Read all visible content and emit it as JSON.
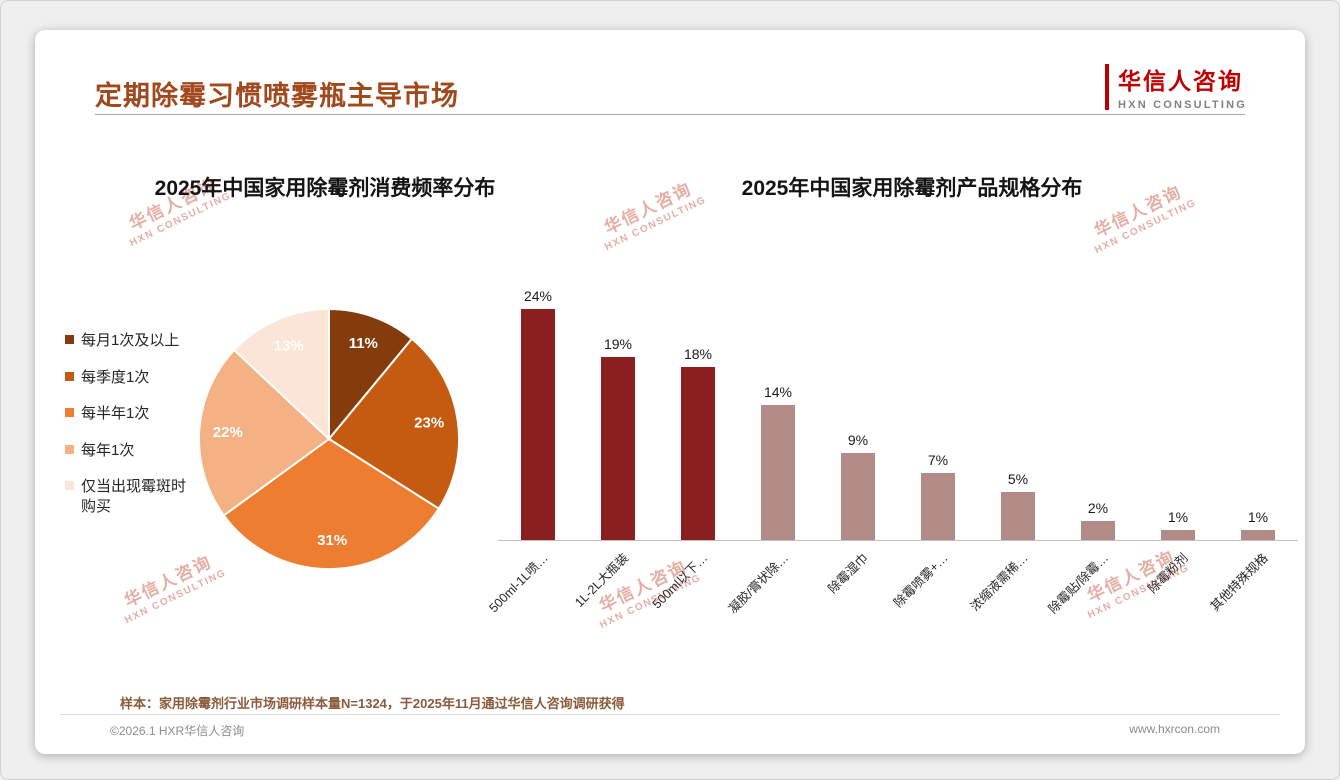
{
  "page": {
    "title": "定期除霉习惯喷雾瓶主导市场",
    "logo": {
      "cn": "华信人咨询",
      "en": "HXN CONSULTING"
    },
    "watermark": {
      "cn": "华信人咨询",
      "en": "HXN CONSULTING"
    },
    "footnote": "样本：家用除霉剂行业市场调研样本量N=1324，于2025年11月通过华信人咨询调研获得",
    "footer": {
      "left": "©2026.1 HXR华信人咨询",
      "right": "www.hxrcon.com"
    }
  },
  "colors": {
    "brand_red": "#C00000",
    "title_brown": "#A1481D",
    "dark_bar_red": "#8B1E1E",
    "light_bar_mauve": "#B28A86",
    "watermark": "rgba(205,92,69,0.5)"
  },
  "chart_data": [
    {
      "type": "pie",
      "title": "2025年中国家用除霉剂消费频率分布",
      "labels": [
        "每月1次及以上",
        "每季度1次",
        "每半年1次",
        "每年1次",
        "仅当出现霉斑时购买"
      ],
      "values": [
        11,
        23,
        31,
        22,
        13
      ],
      "value_labels": [
        "11%",
        "23%",
        "31%",
        "22%",
        "13%"
      ],
      "colors": [
        "#843C0C",
        "#C55A11",
        "#ED7D31",
        "#F4B183",
        "#FBE5D6"
      ],
      "legend_position": "left",
      "start_angle_deg": 0,
      "direction": "clockwise"
    },
    {
      "type": "bar",
      "title": "2025年中国家用除霉剂产品规格分布",
      "categories": [
        "500ml-1L喷…",
        "1L-2L大瓶装",
        "500ml以下…",
        "凝胶/膏状除…",
        "除霉湿巾",
        "除霉喷雾+…",
        "浓缩液需稀…",
        "除霉贴/除霉…",
        "除霉粉剂",
        "其他特殊规格"
      ],
      "values": [
        24,
        19,
        18,
        14,
        9,
        7,
        5,
        2,
        1,
        1
      ],
      "value_labels": [
        "24%",
        "19%",
        "18%",
        "14%",
        "9%",
        "7%",
        "5%",
        "2%",
        "1%",
        "1%"
      ],
      "bar_colors": [
        "#8B1E1E",
        "#8B1E1E",
        "#8B1E1E",
        "#B28A86",
        "#B28A86",
        "#B28A86",
        "#B28A86",
        "#B28A86",
        "#B28A86",
        "#B28A86"
      ],
      "xlabel": "",
      "ylabel": "",
      "ylim": [
        0,
        26
      ],
      "grid": false,
      "legend": false
    }
  ]
}
